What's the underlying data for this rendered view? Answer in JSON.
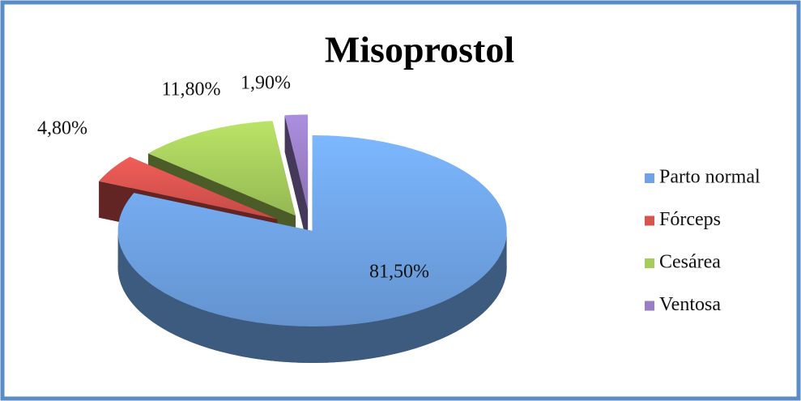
{
  "chart_data": {
    "type": "pie",
    "title": "Misoprostol",
    "categories": [
      "Parto normal",
      "Fórceps",
      "Cesárea",
      "Ventosa"
    ],
    "values": [
      81.5,
      4.8,
      11.8,
      1.9
    ],
    "value_labels": [
      "81,50%",
      "4,80%",
      "11,80%",
      "1,90%"
    ],
    "colors": [
      "#6fa3e6",
      "#d9534f",
      "#a6cc5c",
      "#9a7fc7"
    ],
    "legend": "right"
  }
}
